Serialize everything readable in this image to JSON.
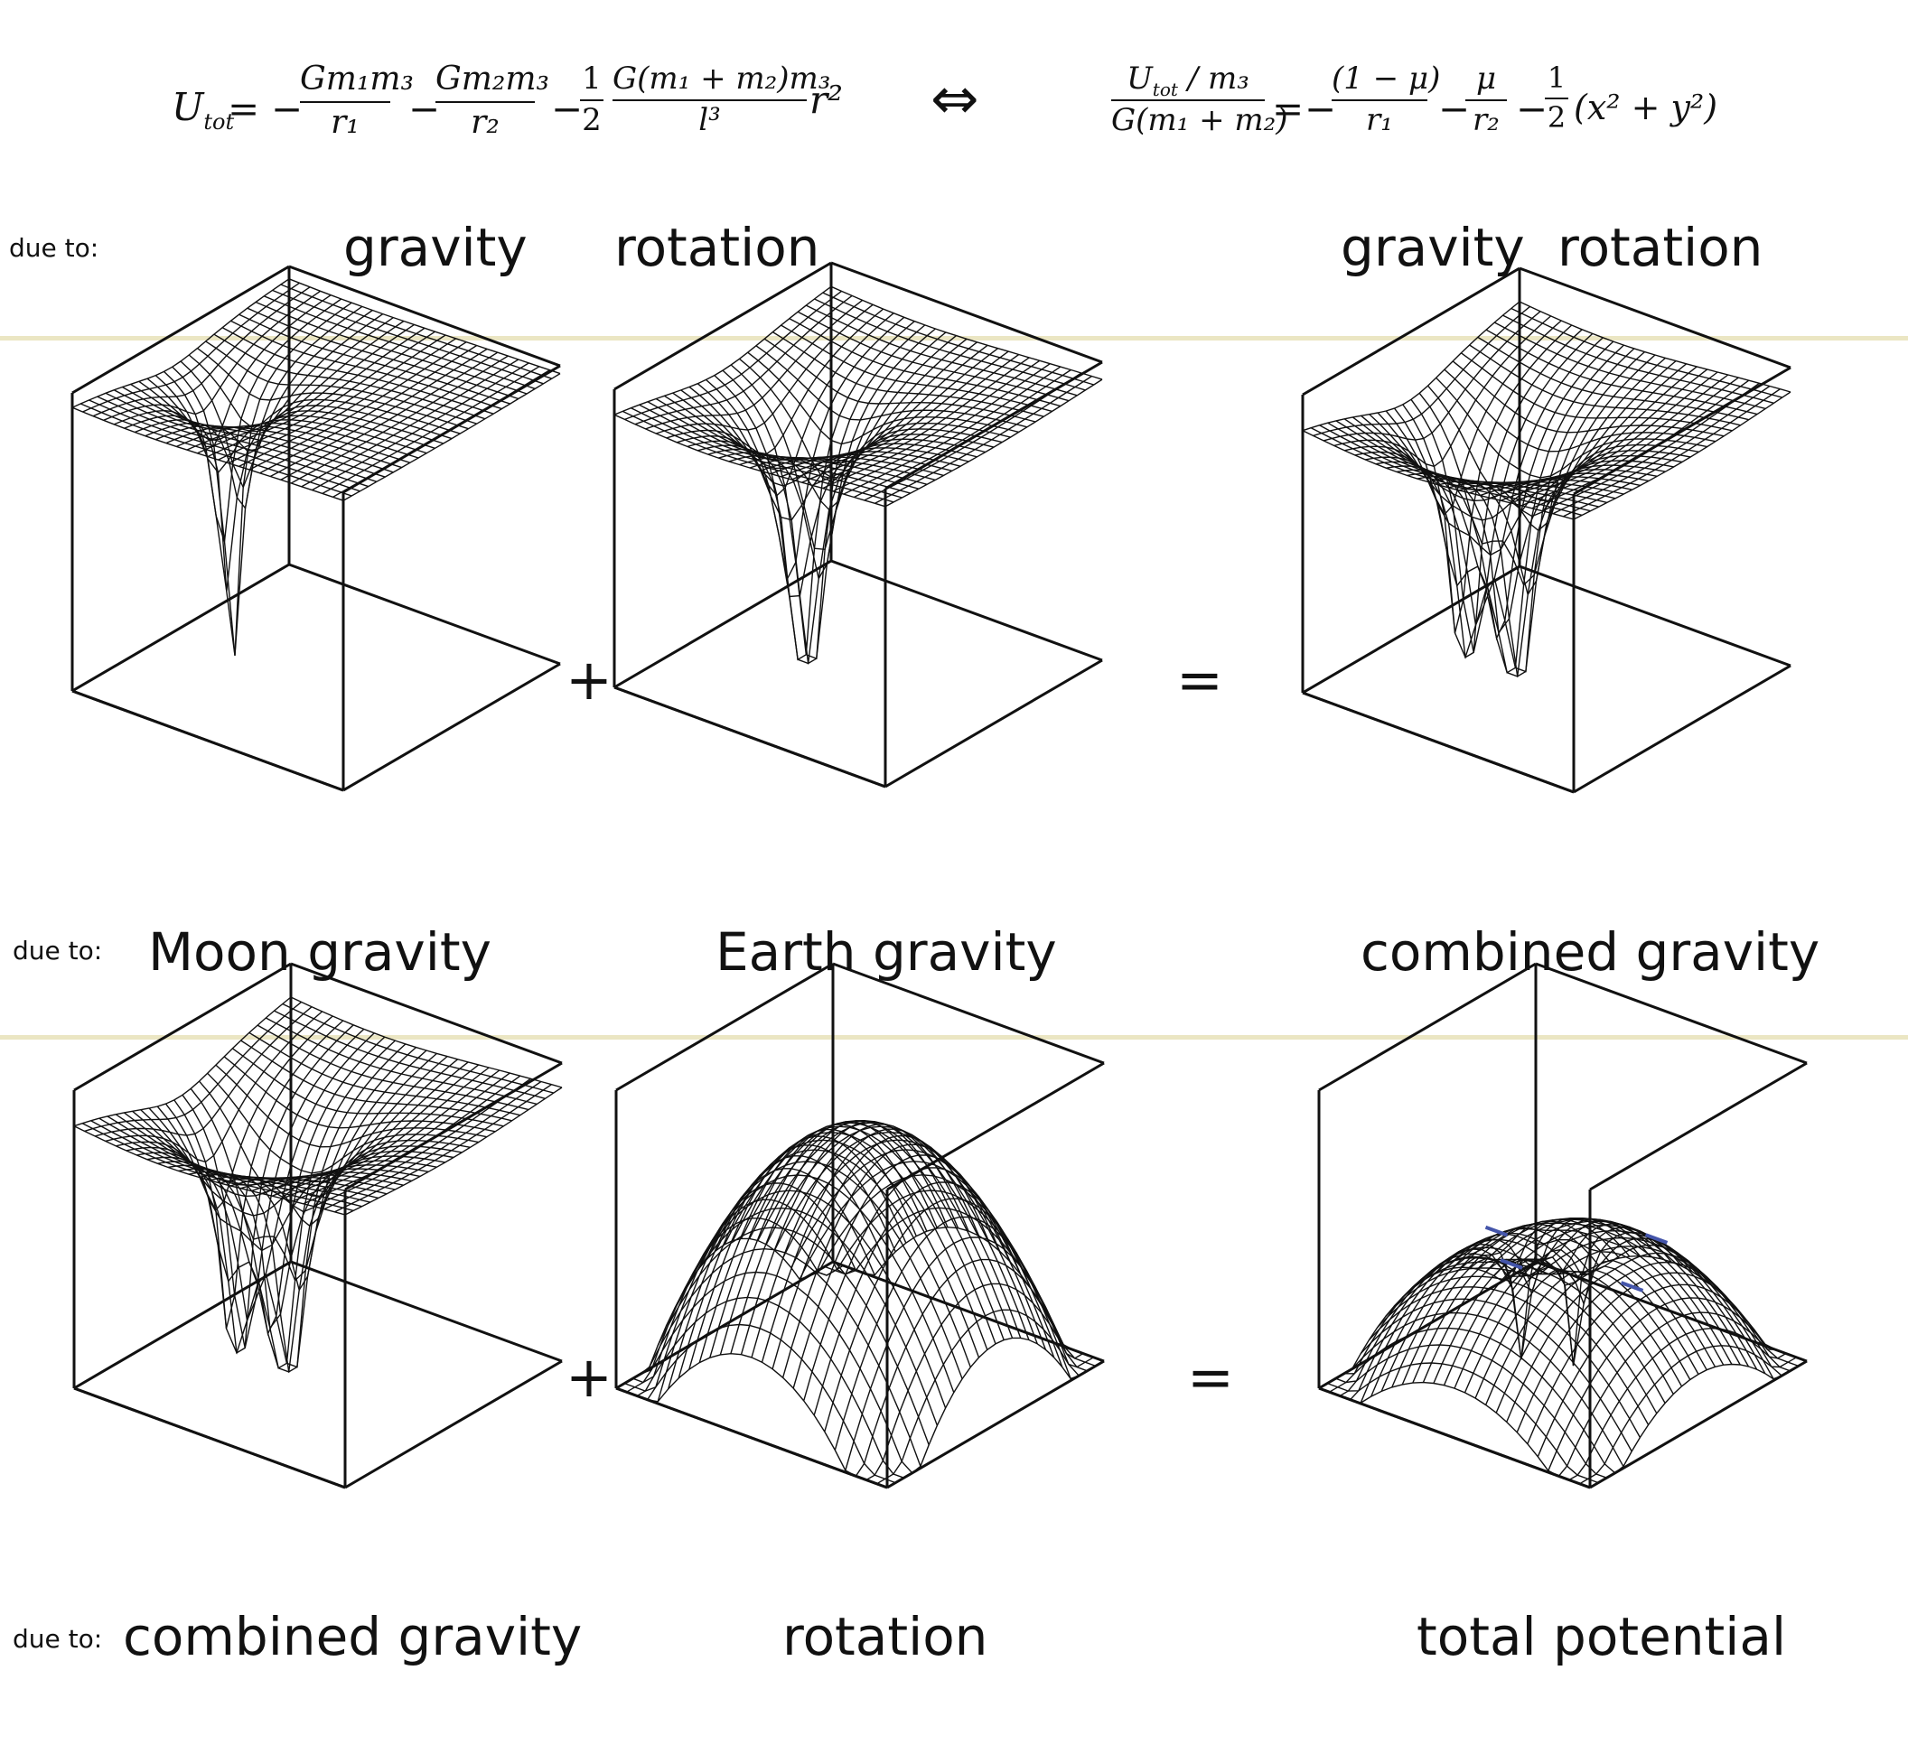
{
  "colors": {
    "divider": "#ebe6c3",
    "ink": "#111111",
    "accent": "#4455aa"
  },
  "equations": {
    "left": {
      "lhs": "U",
      "lhs_sub": "tot",
      "equals": "=",
      "term1": {
        "sign": "−",
        "num": "Gm₁m₃",
        "den": "r₁"
      },
      "term2": {
        "sign": "−",
        "num": "Gm₂m₃",
        "den": "r₂"
      },
      "term3": {
        "sign": "−",
        "coef_num": "1",
        "coef_den": "2",
        "num": "G(m₁ + m₂)m₃",
        "den": "l³",
        "tail": "r²"
      }
    },
    "arrow": "⇔",
    "right": {
      "lhs_num": "U",
      "lhs_num_sub": "tot",
      "lhs_num_tail": " / m₃",
      "lhs_den": "G(m₁ + m₂)",
      "equals": "=",
      "term1": {
        "sign": "−",
        "num": "(1 − μ)",
        "den": "r₁"
      },
      "term2": {
        "sign": "−",
        "num": "μ",
        "den": "r₂"
      },
      "term3": {
        "sign": "−",
        "coef_num": "1",
        "coef_den": "2",
        "tail": "(x² + y²)"
      }
    }
  },
  "row_top": {
    "due_to": "due to:",
    "labels": [
      "gravity",
      "rotation",
      "gravity",
      "rotation"
    ]
  },
  "row_middle": {
    "due_to": "due to:",
    "operators": [
      "+",
      "="
    ],
    "captions": [
      "Moon gravity",
      "Earth gravity",
      "combined gravity"
    ]
  },
  "row_bottom": {
    "due_to": "due to:",
    "operators": [
      "+",
      "="
    ],
    "captions": [
      "combined gravity",
      "rotation",
      "total potential"
    ]
  }
}
